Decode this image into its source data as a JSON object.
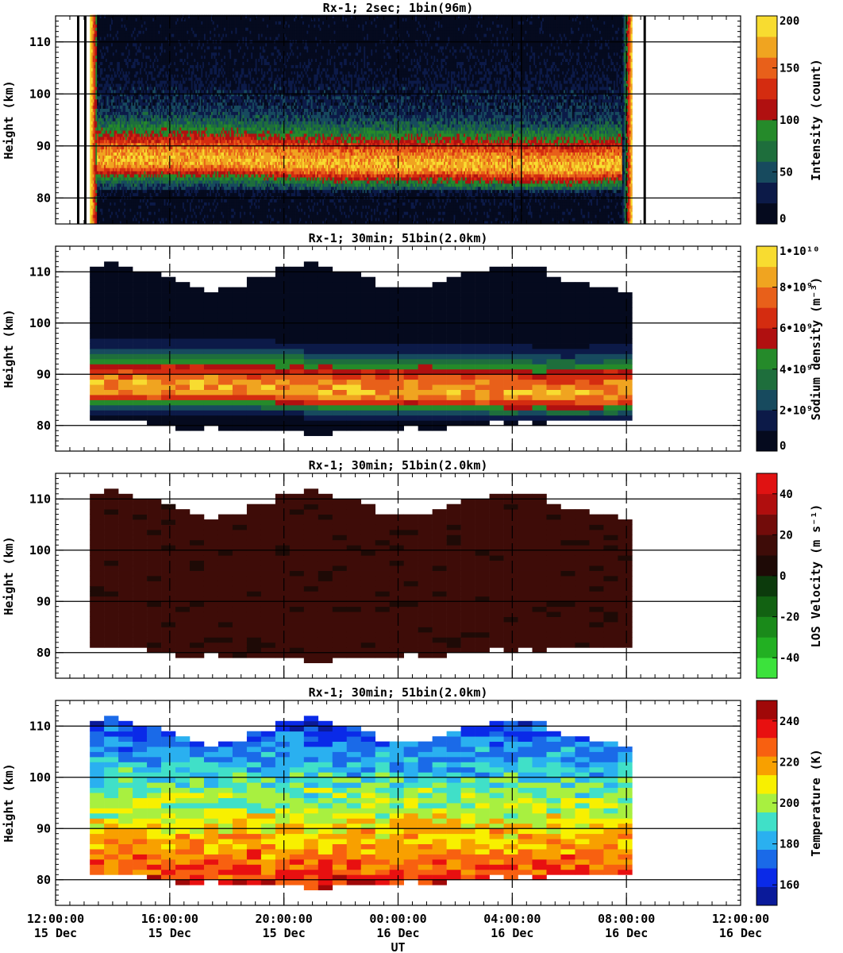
{
  "figure": {
    "xlabel": "UT",
    "x_ticks": [
      {
        "time": "12:00:00",
        "date": "15 Dec"
      },
      {
        "time": "16:00:00",
        "date": "15 Dec"
      },
      {
        "time": "20:00:00",
        "date": "15 Dec"
      },
      {
        "time": "00:00:00",
        "date": "16 Dec"
      },
      {
        "time": "04:00:00",
        "date": "16 Dec"
      },
      {
        "time": "08:00:00",
        "date": "16 Dec"
      },
      {
        "time": "12:00:00",
        "date": "16 Dec"
      }
    ]
  },
  "chart_data": [
    {
      "type": "heatmap",
      "title": "Rx-1;  2sec; 1bin(96m)",
      "ylabel": "Height (km)",
      "x_range_ut_hours": [
        12,
        36
      ],
      "ylim": [
        75,
        115
      ],
      "y_ticks": [
        80,
        90,
        100,
        110
      ],
      "colorbar": {
        "label": "Intensity (count)",
        "range": [
          0,
          200
        ],
        "ticks": [
          "0",
          "50",
          "100",
          "150",
          "200"
        ],
        "colors": [
          "#050a1e",
          "#0c1a48",
          "#174a5e",
          "#1e6e3c",
          "#258a2a",
          "#b01010",
          "#d42c10",
          "#e8601a",
          "#f0a420",
          "#f8dc30"
        ]
      },
      "obs_start_ut": 13.2,
      "obs_end_ut": 32.2,
      "layer_peak_km": [
        87,
        87,
        86,
        86,
        85.5,
        86
      ],
      "layer_peak_ut": [
        14,
        18,
        22,
        26,
        30,
        31.5
      ]
    },
    {
      "type": "heatmap",
      "title": "Rx-1; 30min; 51bin(2.0km)",
      "ylabel": "Height (km)",
      "x_range_ut_hours": [
        12,
        36
      ],
      "ylim": [
        75,
        115
      ],
      "y_ticks": [
        80,
        90,
        100,
        110
      ],
      "colorbar": {
        "label": "Sodium density (m⁻³)",
        "range": [
          0,
          10000000000.0
        ],
        "ticks": [
          "0",
          "2•10⁹",
          "4•10⁹",
          "6•10⁹",
          "8•10⁹",
          "1•10¹⁰"
        ],
        "colors": [
          "#050a1e",
          "#0c1a48",
          "#174a5e",
          "#1e6e3c",
          "#258a2a",
          "#b01010",
          "#d42c10",
          "#e8601a",
          "#f0a420",
          "#f8dc30"
        ]
      },
      "peak_density_m3": 9000000000.0,
      "peak_height_km": 86
    },
    {
      "type": "heatmap",
      "title": "Rx-1; 30min; 51bin(2.0km)",
      "ylabel": "Height (km)",
      "x_range_ut_hours": [
        12,
        36
      ],
      "ylim": [
        75,
        115
      ],
      "y_ticks": [
        80,
        90,
        100,
        110
      ],
      "colorbar": {
        "label": "LOS Velocity (m s⁻¹)",
        "range": [
          -50,
          50
        ],
        "ticks": [
          "-40",
          "-20",
          "0",
          "20",
          "40"
        ],
        "colors": [
          "#3ce23c",
          "#22b022",
          "#1a8a1a",
          "#126212",
          "#0c3a0c",
          "#1e0a06",
          "#3e0c08",
          "#720c0a",
          "#b00e0e",
          "#e01212"
        ]
      },
      "typical_velocity_ms": 15
    },
    {
      "type": "heatmap",
      "title": "Rx-1; 30min; 51bin(2.0km)",
      "ylabel": "Height (km)",
      "x_range_ut_hours": [
        12,
        36
      ],
      "ylim": [
        75,
        115
      ],
      "y_ticks": [
        80,
        90,
        100,
        110
      ],
      "colorbar": {
        "label": "Temperature (K)",
        "range": [
          150,
          250
        ],
        "ticks": [
          "160",
          "180",
          "200",
          "220",
          "240"
        ],
        "colors": [
          "#0a1a9a",
          "#0a2ae8",
          "#1a6ae8",
          "#2ab0f0",
          "#40e0c8",
          "#a8f040",
          "#f8f000",
          "#f8a000",
          "#f86010",
          "#e81010",
          "#a00808"
        ]
      },
      "temp_at_82km_K": 232,
      "temp_at_108km_K": 170
    }
  ]
}
